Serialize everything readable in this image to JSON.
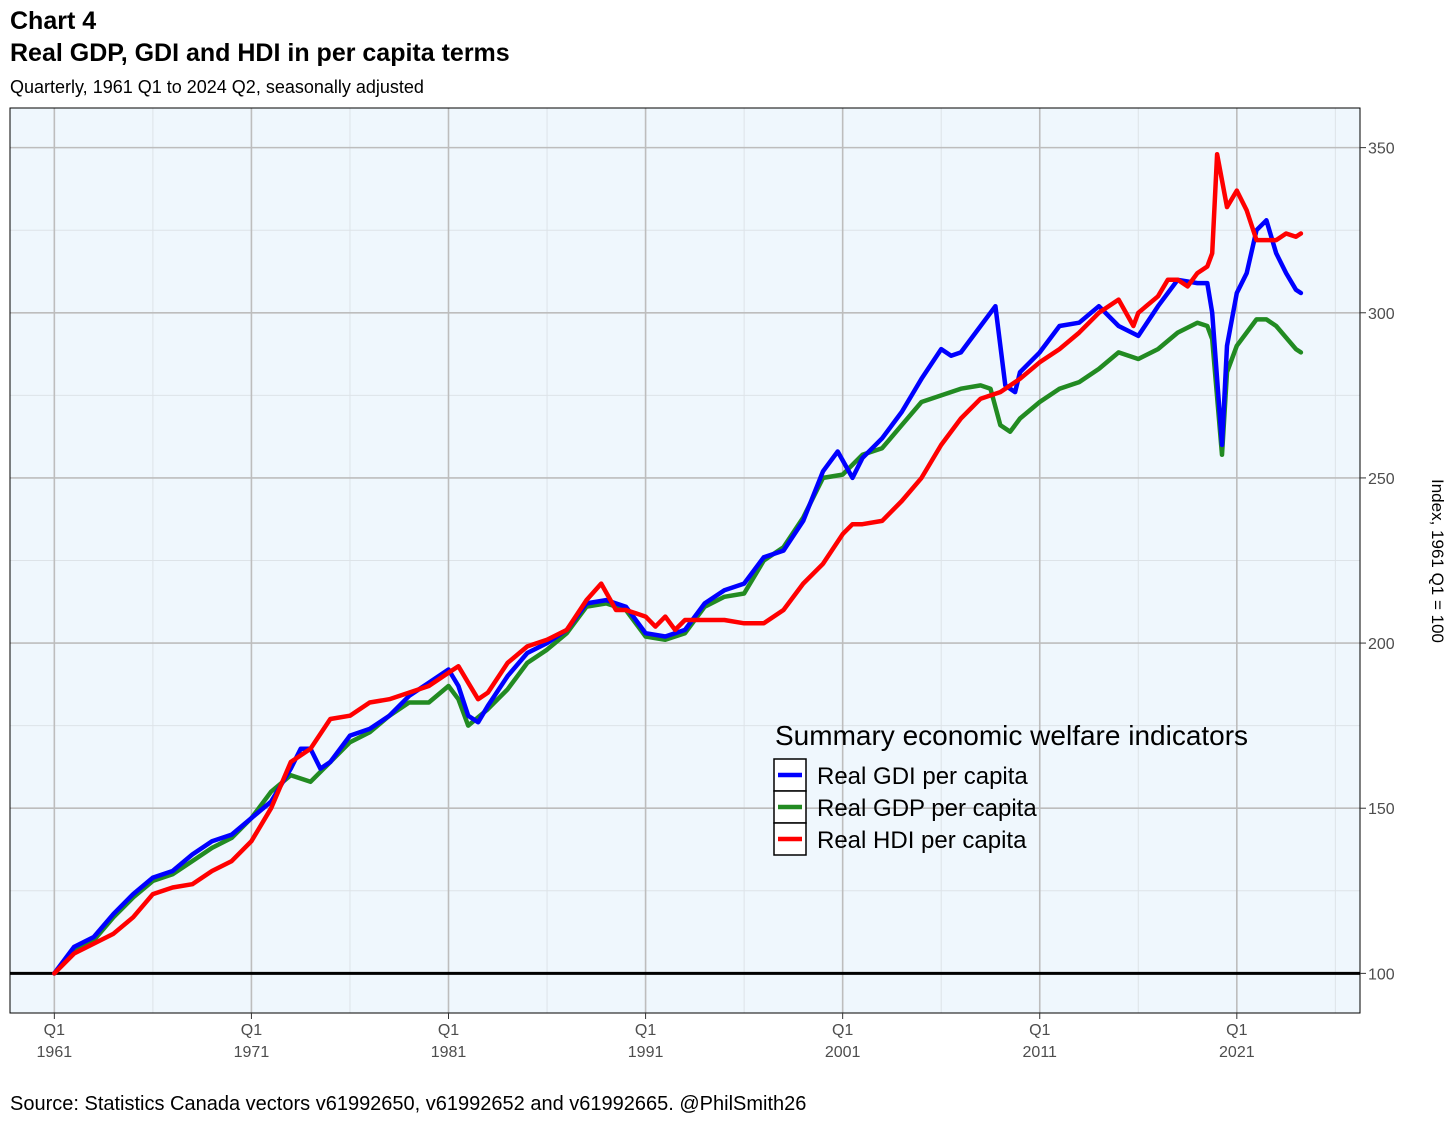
{
  "header": {
    "chart_number": "Chart 4",
    "title": "Real GDP, GDI and HDI in per capita terms",
    "subtitle": "Quarterly, 1961 Q1 to 2024 Q2, seasonally adjusted"
  },
  "footer": {
    "source": "Source: Statistics Canada vectors v61992650, v61992652  and v61992665. @PhilSmith26"
  },
  "chart_data": {
    "type": "line",
    "title": "Real GDP, GDI and HDI in per capita terms",
    "subtitle": "Quarterly, 1961 Q1 to 2024 Q2, seasonally adjusted",
    "ylabel": "Index, 1961 Q1 = 100",
    "xlabel": "",
    "xlim": [
      1958.75,
      2027.25
    ],
    "ylim": [
      88,
      362
    ],
    "y_axis_position": "right",
    "x_ticks": [
      {
        "value": 1961,
        "q": "Q1",
        "year": "1961"
      },
      {
        "value": 1971,
        "q": "Q1",
        "year": "1971"
      },
      {
        "value": 1981,
        "q": "Q1",
        "year": "1981"
      },
      {
        "value": 1991,
        "q": "Q1",
        "year": "1991"
      },
      {
        "value": 2001,
        "q": "Q1",
        "year": "2001"
      },
      {
        "value": 2011,
        "q": "Q1",
        "year": "2011"
      },
      {
        "value": 2021,
        "q": "Q1",
        "year": "2021"
      }
    ],
    "y_ticks": [
      100,
      150,
      200,
      250,
      300,
      350
    ],
    "reference_line": 100,
    "grid": true,
    "legend": {
      "title": "Summary economic welfare indicators",
      "placement": "center-right"
    },
    "colors": {
      "gdi": "#0000ff",
      "gdp": "#228b22",
      "hdi": "#ff0000",
      "panel": "#eff7fd",
      "grid": "#bdbdbd"
    },
    "series": [
      {
        "name": "Real GDI per capita",
        "color": "#0000ff",
        "points": [
          [
            1961,
            100
          ],
          [
            1962,
            108
          ],
          [
            1963,
            111
          ],
          [
            1964,
            118
          ],
          [
            1965,
            124
          ],
          [
            1966,
            129
          ],
          [
            1967,
            131
          ],
          [
            1968,
            136
          ],
          [
            1969,
            140
          ],
          [
            1970,
            142
          ],
          [
            1971,
            147
          ],
          [
            1972,
            152
          ],
          [
            1973,
            162
          ],
          [
            1973.5,
            168
          ],
          [
            1974,
            168
          ],
          [
            1974.5,
            162
          ],
          [
            1975,
            164
          ],
          [
            1976,
            172
          ],
          [
            1977,
            174
          ],
          [
            1978,
            178
          ],
          [
            1979,
            184
          ],
          [
            1980,
            188
          ],
          [
            1981,
            192
          ],
          [
            1981.5,
            187
          ],
          [
            1982,
            178
          ],
          [
            1982.5,
            176
          ],
          [
            1983,
            181
          ],
          [
            1984,
            190
          ],
          [
            1985,
            197
          ],
          [
            1986,
            200
          ],
          [
            1987,
            204
          ],
          [
            1988,
            212
          ],
          [
            1989,
            213
          ],
          [
            1990,
            211
          ],
          [
            1991,
            203
          ],
          [
            1992,
            202
          ],
          [
            1993,
            204
          ],
          [
            1994,
            212
          ],
          [
            1995,
            216
          ],
          [
            1996,
            218
          ],
          [
            1997,
            226
          ],
          [
            1998,
            228
          ],
          [
            1999,
            237
          ],
          [
            2000,
            252
          ],
          [
            2000.75,
            258
          ],
          [
            2001.5,
            250
          ],
          [
            2002,
            256
          ],
          [
            2003,
            262
          ],
          [
            2004,
            270
          ],
          [
            2005,
            280
          ],
          [
            2006,
            289
          ],
          [
            2006.5,
            287
          ],
          [
            2007,
            288
          ],
          [
            2008,
            296
          ],
          [
            2008.75,
            302
          ],
          [
            2009.25,
            278
          ],
          [
            2009.75,
            276
          ],
          [
            2010,
            282
          ],
          [
            2011,
            288
          ],
          [
            2012,
            296
          ],
          [
            2013,
            297
          ],
          [
            2014,
            302
          ],
          [
            2015,
            296
          ],
          [
            2016,
            293
          ],
          [
            2017,
            302
          ],
          [
            2018,
            310
          ],
          [
            2019,
            309
          ],
          [
            2019.5,
            309
          ],
          [
            2019.75,
            300
          ],
          [
            2020.25,
            260
          ],
          [
            2020.5,
            290
          ],
          [
            2021,
            306
          ],
          [
            2021.5,
            312
          ],
          [
            2022,
            325
          ],
          [
            2022.5,
            328
          ],
          [
            2023,
            318
          ],
          [
            2023.5,
            312
          ],
          [
            2024,
            307
          ],
          [
            2024.25,
            306
          ]
        ]
      },
      {
        "name": "Real GDP per capita",
        "color": "#228b22",
        "points": [
          [
            1961,
            100
          ],
          [
            1962,
            107
          ],
          [
            1963,
            110
          ],
          [
            1964,
            117
          ],
          [
            1965,
            123
          ],
          [
            1966,
            128
          ],
          [
            1967,
            130
          ],
          [
            1968,
            134
          ],
          [
            1969,
            138
          ],
          [
            1970,
            141
          ],
          [
            1971,
            147
          ],
          [
            1972,
            155
          ],
          [
            1973,
            160
          ],
          [
            1974,
            158
          ],
          [
            1975,
            164
          ],
          [
            1976,
            170
          ],
          [
            1977,
            173
          ],
          [
            1978,
            178
          ],
          [
            1979,
            182
          ],
          [
            1980,
            182
          ],
          [
            1981,
            187
          ],
          [
            1981.5,
            183
          ],
          [
            1982,
            175
          ],
          [
            1983,
            180
          ],
          [
            1984,
            186
          ],
          [
            1985,
            194
          ],
          [
            1986,
            198
          ],
          [
            1987,
            203
          ],
          [
            1988,
            211
          ],
          [
            1989,
            212
          ],
          [
            1990,
            210
          ],
          [
            1991,
            202
          ],
          [
            1992,
            201
          ],
          [
            1993,
            203
          ],
          [
            1994,
            211
          ],
          [
            1995,
            214
          ],
          [
            1996,
            215
          ],
          [
            1997,
            225
          ],
          [
            1998,
            229
          ],
          [
            1999,
            238
          ],
          [
            2000,
            250
          ],
          [
            2001,
            251
          ],
          [
            2002,
            257
          ],
          [
            2003,
            259
          ],
          [
            2004,
            266
          ],
          [
            2005,
            273
          ],
          [
            2006,
            275
          ],
          [
            2007,
            277
          ],
          [
            2008,
            278
          ],
          [
            2008.5,
            277
          ],
          [
            2009,
            266
          ],
          [
            2009.5,
            264
          ],
          [
            2010,
            268
          ],
          [
            2011,
            273
          ],
          [
            2012,
            277
          ],
          [
            2013,
            279
          ],
          [
            2014,
            283
          ],
          [
            2015,
            288
          ],
          [
            2016,
            286
          ],
          [
            2017,
            289
          ],
          [
            2018,
            294
          ],
          [
            2019,
            297
          ],
          [
            2019.5,
            296
          ],
          [
            2019.75,
            292
          ],
          [
            2020.25,
            257
          ],
          [
            2020.5,
            282
          ],
          [
            2021,
            290
          ],
          [
            2022,
            298
          ],
          [
            2022.5,
            298
          ],
          [
            2023,
            296
          ],
          [
            2024,
            289
          ],
          [
            2024.25,
            288
          ]
        ]
      },
      {
        "name": "Real HDI per capita",
        "color": "#ff0000",
        "points": [
          [
            1961,
            100
          ],
          [
            1962,
            106
          ],
          [
            1963,
            109
          ],
          [
            1964,
            112
          ],
          [
            1965,
            117
          ],
          [
            1966,
            124
          ],
          [
            1967,
            126
          ],
          [
            1968,
            127
          ],
          [
            1969,
            131
          ],
          [
            1970,
            134
          ],
          [
            1971,
            140
          ],
          [
            1972,
            150
          ],
          [
            1973,
            164
          ],
          [
            1974,
            168
          ],
          [
            1975,
            177
          ],
          [
            1976,
            178
          ],
          [
            1977,
            182
          ],
          [
            1978,
            183
          ],
          [
            1979,
            185
          ],
          [
            1980,
            187
          ],
          [
            1981,
            191
          ],
          [
            1981.5,
            193
          ],
          [
            1982,
            188
          ],
          [
            1982.5,
            183
          ],
          [
            1983,
            185
          ],
          [
            1984,
            194
          ],
          [
            1985,
            199
          ],
          [
            1986,
            201
          ],
          [
            1987,
            204
          ],
          [
            1988,
            213
          ],
          [
            1988.75,
            218
          ],
          [
            1989.5,
            210
          ],
          [
            1990,
            210
          ],
          [
            1991,
            208
          ],
          [
            1991.5,
            205
          ],
          [
            1992,
            208
          ],
          [
            1992.5,
            204
          ],
          [
            1993,
            207
          ],
          [
            1994,
            207
          ],
          [
            1995,
            207
          ],
          [
            1996,
            206
          ],
          [
            1997,
            206
          ],
          [
            1998,
            210
          ],
          [
            1999,
            218
          ],
          [
            2000,
            224
          ],
          [
            2001,
            233
          ],
          [
            2001.5,
            236
          ],
          [
            2002,
            236
          ],
          [
            2003,
            237
          ],
          [
            2004,
            243
          ],
          [
            2005,
            250
          ],
          [
            2006,
            260
          ],
          [
            2007,
            268
          ],
          [
            2008,
            274
          ],
          [
            2009,
            276
          ],
          [
            2010,
            280
          ],
          [
            2011,
            285
          ],
          [
            2012,
            289
          ],
          [
            2013,
            294
          ],
          [
            2014,
            300
          ],
          [
            2015,
            304
          ],
          [
            2015.75,
            296
          ],
          [
            2016,
            300
          ],
          [
            2017,
            305
          ],
          [
            2017.5,
            310
          ],
          [
            2018,
            310
          ],
          [
            2018.5,
            308
          ],
          [
            2019,
            312
          ],
          [
            2019.5,
            314
          ],
          [
            2019.75,
            318
          ],
          [
            2020,
            348
          ],
          [
            2020.5,
            332
          ],
          [
            2021,
            337
          ],
          [
            2021.5,
            331
          ],
          [
            2022,
            322
          ],
          [
            2023,
            322
          ],
          [
            2023.5,
            324
          ],
          [
            2024,
            323
          ],
          [
            2024.25,
            324
          ]
        ]
      }
    ]
  }
}
